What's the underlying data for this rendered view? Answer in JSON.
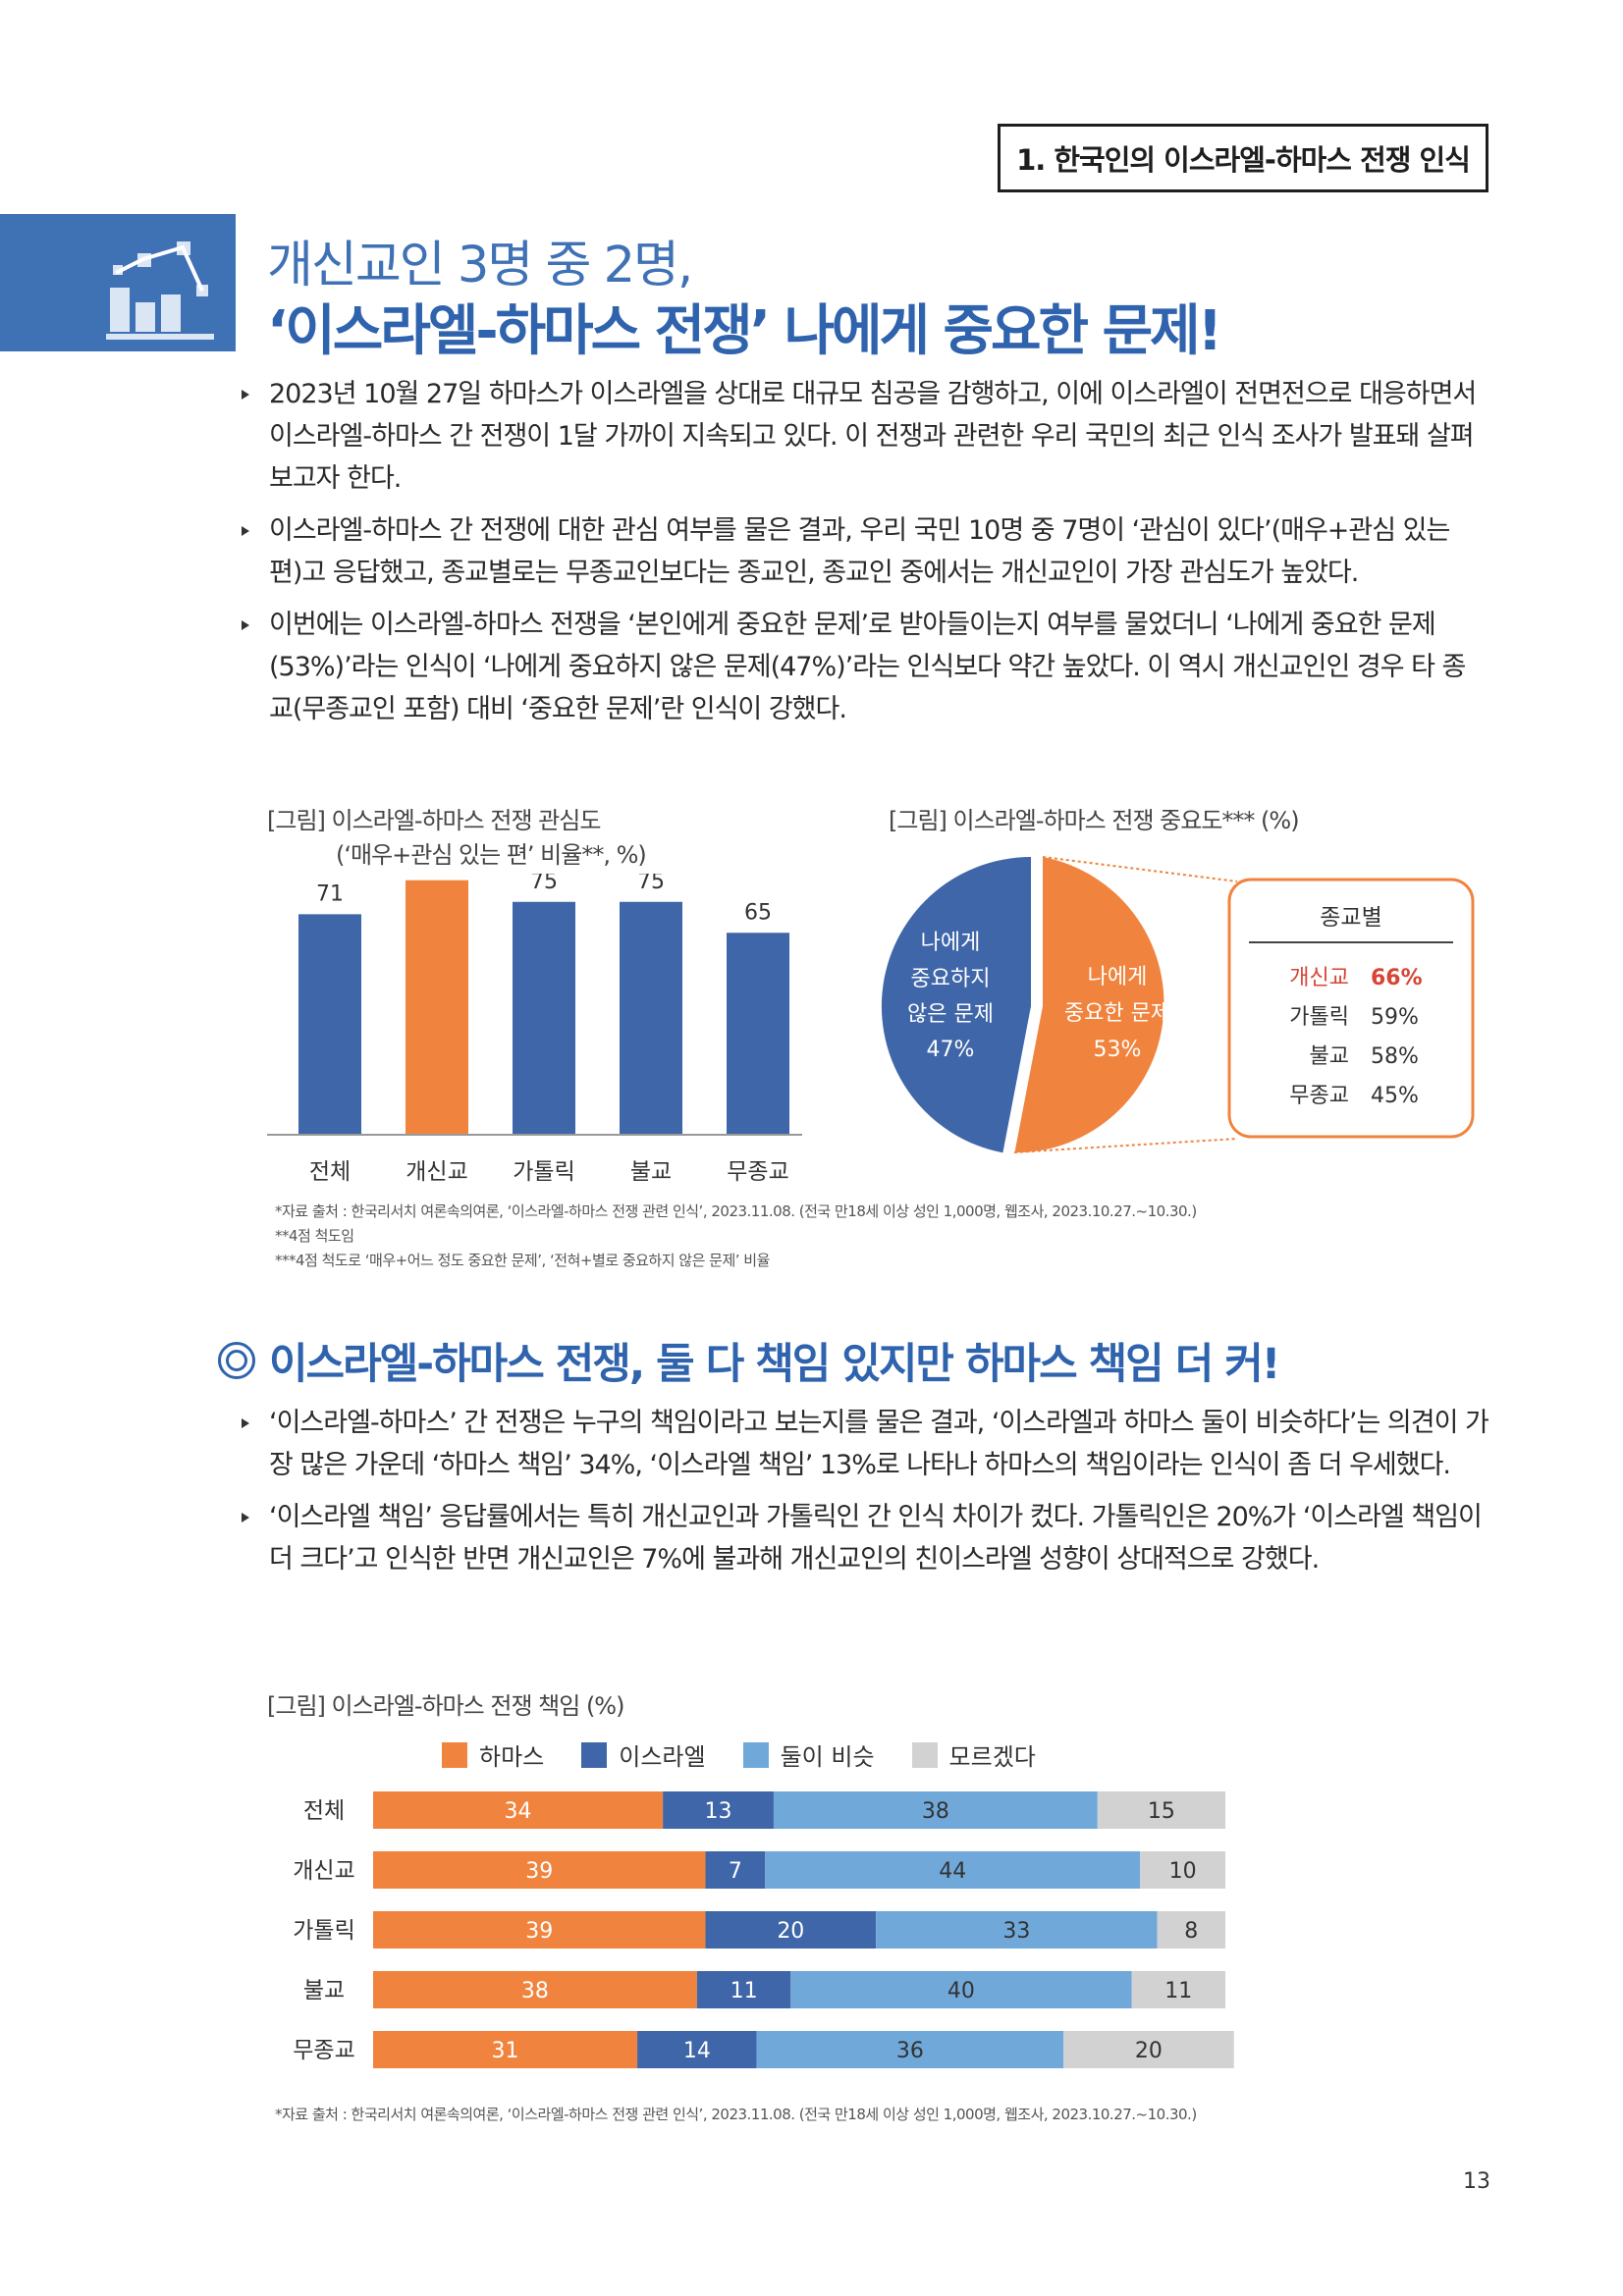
{
  "section_tag": "1. 한국인의 이스라엘-하마스 전쟁 인식",
  "icon": "chart-bars-icon",
  "headline": {
    "line1": "개신교인 3명 중 2명,",
    "line2": "‘이스라엘-하마스 전쟁’ 나에게 중요한 문제!"
  },
  "bullets1": [
    "2023년 10월 27일 하마스가 이스라엘을 상대로 대규모 침공을 감행하고, 이에 이스라엘이 전면전으로 대응하면서 이스라엘-하마스 간 전쟁이 1달 가까이 지속되고 있다. 이 전쟁과 관련한 우리 국민의 최근 인식 조사가 발표돼 살펴보고자 한다.",
    "이스라엘-하마스 간 전쟁에 대한 관심 여부를 물은 결과, 우리 국민 10명 중 7명이 ‘관심이 있다’(매우+관심 있는 편)고 응답했고, 종교별로는 무종교인보다는 종교인, 종교인 중에서는 개신교인이 가장 관심도가 높았다.",
    "이번에는 이스라엘-하마스 전쟁을 ‘본인에게 중요한 문제’로 받아들이는지 여부를 물었더니 ‘나에게 중요한 문제(53%)’라는 인식이 ‘나에게 중요하지 않은 문제(47%)’라는 인식보다 약간 높았다. 이 역시 개신교인인 경우 타 종교(무종교인 포함) 대비 ‘중요한 문제’란 인식이 강했다."
  ],
  "fig1": {
    "title": "[그림] 이스라엘-하마스 전쟁 관심도",
    "subtitle": "(‘매우+관심 있는 편’ 비율**, %)"
  },
  "fig2": {
    "title": "[그림] 이스라엘-하마스 전쟁 중요도*** (%)"
  },
  "pie_labels": {
    "not_important": [
      "나에게",
      "중요하지",
      "않은 문제",
      "47%"
    ],
    "important": [
      "나에게",
      "중요한 문제",
      "53%"
    ]
  },
  "religion_box": {
    "title": "종교별",
    "rows": [
      {
        "name": "개신교",
        "value": "66%",
        "highlight": true
      },
      {
        "name": "가톨릭",
        "value": "59%",
        "highlight": false
      },
      {
        "name": "불교",
        "value": "58%",
        "highlight": false
      },
      {
        "name": "무종교",
        "value": "45%",
        "highlight": false
      }
    ]
  },
  "source1": [
    "*자료 출처 : 한국리서치 여론속의여론, ‘이스라엘-하마스 전쟁 관련 인식’, 2023.11.08. (전국 만18세 이상 성인 1,000명, 웹조사, 2023.10.27.~10.30.)",
    "**4점 척도임",
    "***4점 척도로 ‘매우+어느 정도 중요한 문제’, ‘전혀+별로 중요하지 않은 문제’ 비율"
  ],
  "section2_title": "이스라엘-하마스 전쟁, 둘 다 책임 있지만 하마스 책임 더 커!",
  "bullets2": [
    "‘이스라엘-하마스’ 간 전쟁은 누구의 책임이라고 보는지를 물은 결과, ‘이스라엘과 하마스 둘이 비슷하다’는 의견이 가장 많은 가운데 ‘하마스 책임’ 34%, ‘이스라엘 책임’ 13%로 나타나 하마스의 책임이라는 인식이 좀 더 우세했다.",
    "‘이스라엘 책임’ 응답률에서는 특히 개신교인과 가톨릭인 간 인식 차이가 컸다. 가톨릭인은 20%가 ‘이스라엘 책임이 더 크다’고 인식한 반면 개신교인은 7%에 불과해 개신교인의 친이스라엘 성향이 상대적으로 강했다."
  ],
  "fig3": {
    "title": "[그림] 이스라엘-하마스 전쟁 책임 (%)"
  },
  "source2": "*자료 출처 : 한국리서치 여론속의여론, ‘이스라엘-하마스 전쟁 관련 인식’, 2023.11.08. (전국 만18세 이상 성인 1,000명, 웹조사, 2023.10.27.~10.30.)",
  "page_number": "13",
  "colors": {
    "blue": "#3f66a8",
    "orange": "#f0843e",
    "light_blue": "#70a9d9",
    "gray": "#d2d2d2",
    "highlight_red": "#d64535"
  },
  "chart_data": [
    {
      "type": "bar",
      "categories": [
        "전체",
        "개신교",
        "가톨릭",
        "불교",
        "무종교"
      ],
      "values": [
        71,
        82,
        75,
        75,
        65
      ],
      "highlight_index": 1,
      "title": "[그림] 이스라엘-하마스 전쟁 관심도",
      "subtitle": "(‘매우+관심 있는 편’ 비율**, %)",
      "ylim": [
        0,
        100
      ]
    },
    {
      "type": "pie",
      "labels": [
        "나에게 중요하지 않은 문제",
        "나에게 중요한 문제"
      ],
      "values": [
        47,
        53
      ],
      "title": "[그림] 이스라엘-하마스 전쟁 중요도*** (%)"
    },
    {
      "type": "bar",
      "stacked": true,
      "orientation": "horizontal",
      "title": "[그림] 이스라엘-하마스 전쟁 책임 (%)",
      "categories": [
        "전체",
        "개신교",
        "가톨릭",
        "불교",
        "무종교"
      ],
      "series": [
        {
          "name": "하마스",
          "values": [
            34,
            39,
            39,
            38,
            31
          ]
        },
        {
          "name": "이스라엘",
          "values": [
            13,
            7,
            20,
            11,
            14
          ]
        },
        {
          "name": "둘이 비슷",
          "values": [
            38,
            44,
            33,
            40,
            36
          ]
        },
        {
          "name": "모르겠다",
          "values": [
            15,
            10,
            8,
            11,
            20
          ]
        }
      ],
      "legend": "top"
    }
  ]
}
